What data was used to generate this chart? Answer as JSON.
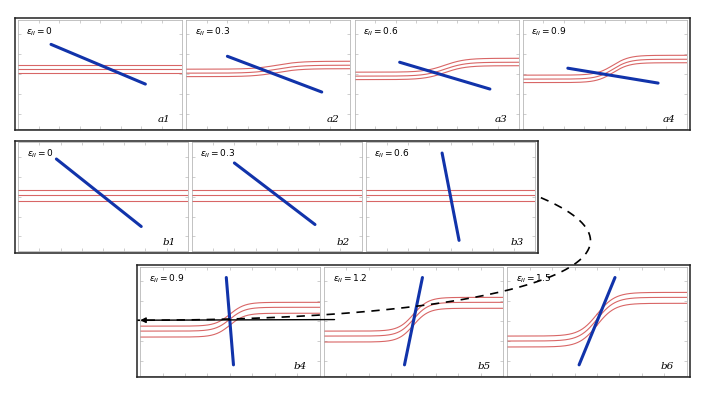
{
  "row_a_eps": [
    0,
    0.3,
    0.6,
    0.9
  ],
  "row_b1_eps": [
    0,
    0.3,
    0.6
  ],
  "row_b2_eps": [
    0.9,
    1.2,
    1.5
  ],
  "panel_labels_a": [
    "a1",
    "a2",
    "a3",
    "a4"
  ],
  "panel_labels_b1": [
    "b1",
    "b2",
    "b3"
  ],
  "panel_labels_b2": [
    "b4",
    "b5",
    "b6"
  ],
  "blue_color": "#1133aa",
  "red_color": "#cc3333",
  "red_alpha": 0.75,
  "bg_color": "#ffffff",
  "border_color": "#333333",
  "tick_color": "#aaaaaa",
  "label_eps_a": [
    "$\\varepsilon_{II}= 0$",
    "$\\varepsilon_{II}= 0.3$",
    "$\\varepsilon_{II}= 0.6$",
    "$\\varepsilon_{II}= 0.9$"
  ],
  "label_eps_b1": [
    "$\\varepsilon_{II}= 0$",
    "$\\varepsilon_{II}= 0.3$",
    "$\\varepsilon_{II}= 0.6$"
  ],
  "label_eps_b2": [
    "$\\varepsilon_{II}= 0.9$",
    "$\\varepsilon_{II}= 1.2$",
    "$\\varepsilon_{II}= 1.5$"
  ]
}
